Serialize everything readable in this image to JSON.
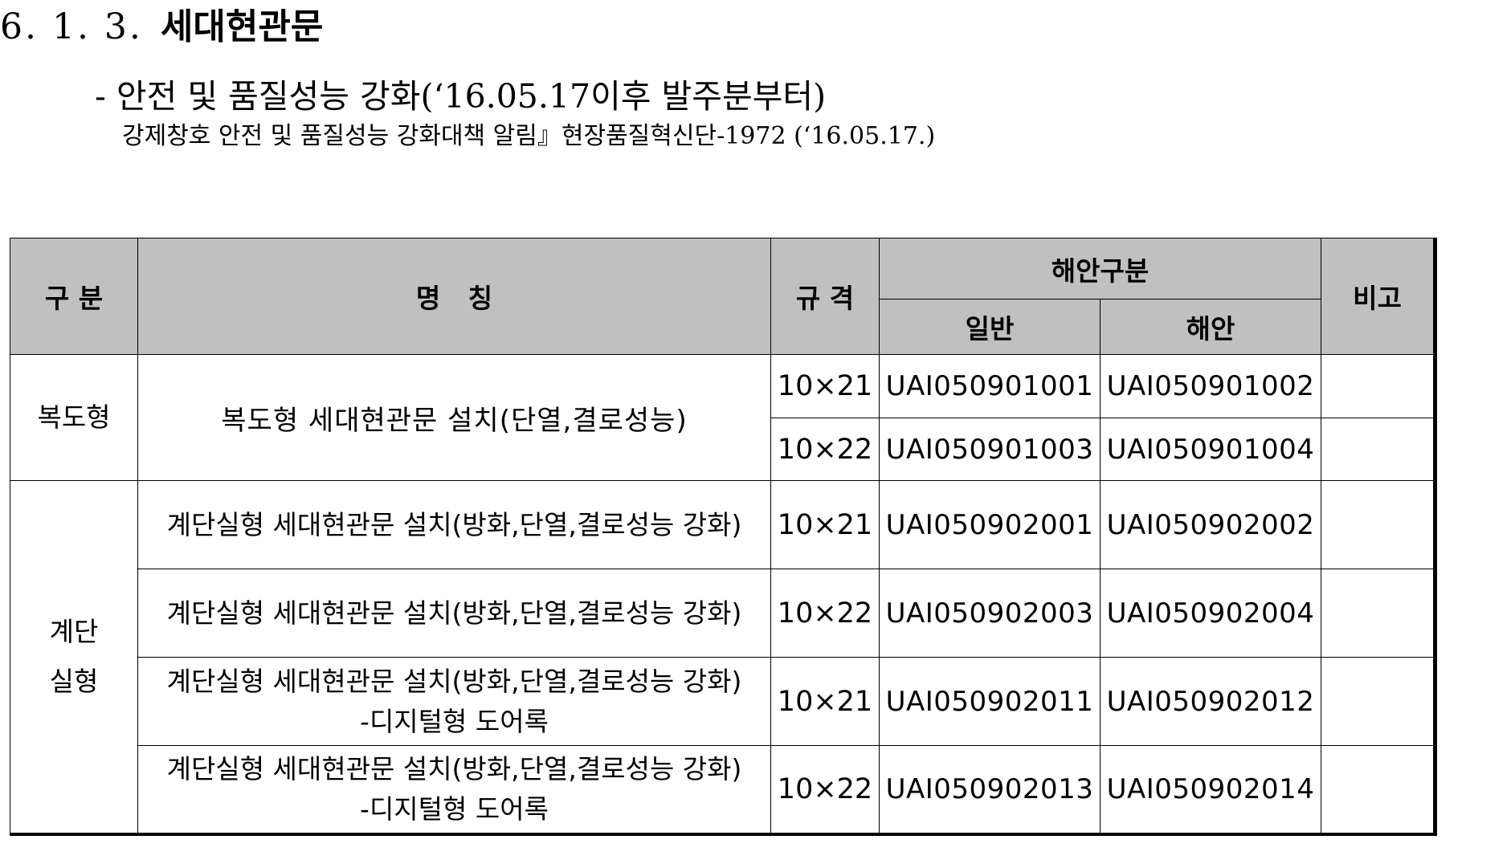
{
  "section": {
    "number": "6. 1. 3.",
    "title": "세대현관문"
  },
  "subtitle": "- 안전 및 품질성능 강화(‘16.05.17이후 발주분부터)",
  "note": "강제창호 안전 및 품질성능 강화대책 알림』현장품질혁신단-1972 (‘16.05.17.)",
  "table": {
    "headers": {
      "category": "구 분",
      "name": "명   칭",
      "spec": "규 격",
      "coastal_group": "해안구분",
      "general": "일반",
      "coastal": "해안",
      "remarks": "비고"
    },
    "groups": [
      {
        "label_lines": [
          "복도형"
        ],
        "name": "복도형 세대현관문 설치(단열,결로성능)",
        "rows": [
          {
            "spec": "10×21",
            "general": "UAI050901001",
            "coastal": "UAI050901002",
            "remarks": ""
          },
          {
            "spec": "10×22",
            "general": "UAI050901003",
            "coastal": "UAI050901004",
            "remarks": ""
          }
        ]
      },
      {
        "label_lines": [
          "계단",
          "실형"
        ],
        "rows": [
          {
            "name_lines": [
              "계단실형 세대현관문 설치(방화,단열,결로성능 강화)"
            ],
            "spec": "10×21",
            "general": "UAI050902001",
            "coastal": "UAI050902002",
            "remarks": ""
          },
          {
            "name_lines": [
              "계단실형 세대현관문 설치(방화,단열,결로성능 강화)"
            ],
            "spec": "10×22",
            "general": "UAI050902003",
            "coastal": "UAI050902004",
            "remarks": ""
          },
          {
            "name_lines": [
              "계단실형 세대현관문 설치(방화,단열,결로성능 강화)",
              "-디지털형 도어록"
            ],
            "spec": "10×21",
            "general": "UAI050902011",
            "coastal": "UAI050902012",
            "remarks": ""
          },
          {
            "name_lines": [
              "계단실형 세대현관문 설치(방화,단열,결로성능 강화)",
              "-디지털형 도어록"
            ],
            "spec": "10×22",
            "general": "UAI050902013",
            "coastal": "UAI050902014",
            "remarks": ""
          }
        ]
      }
    ]
  }
}
